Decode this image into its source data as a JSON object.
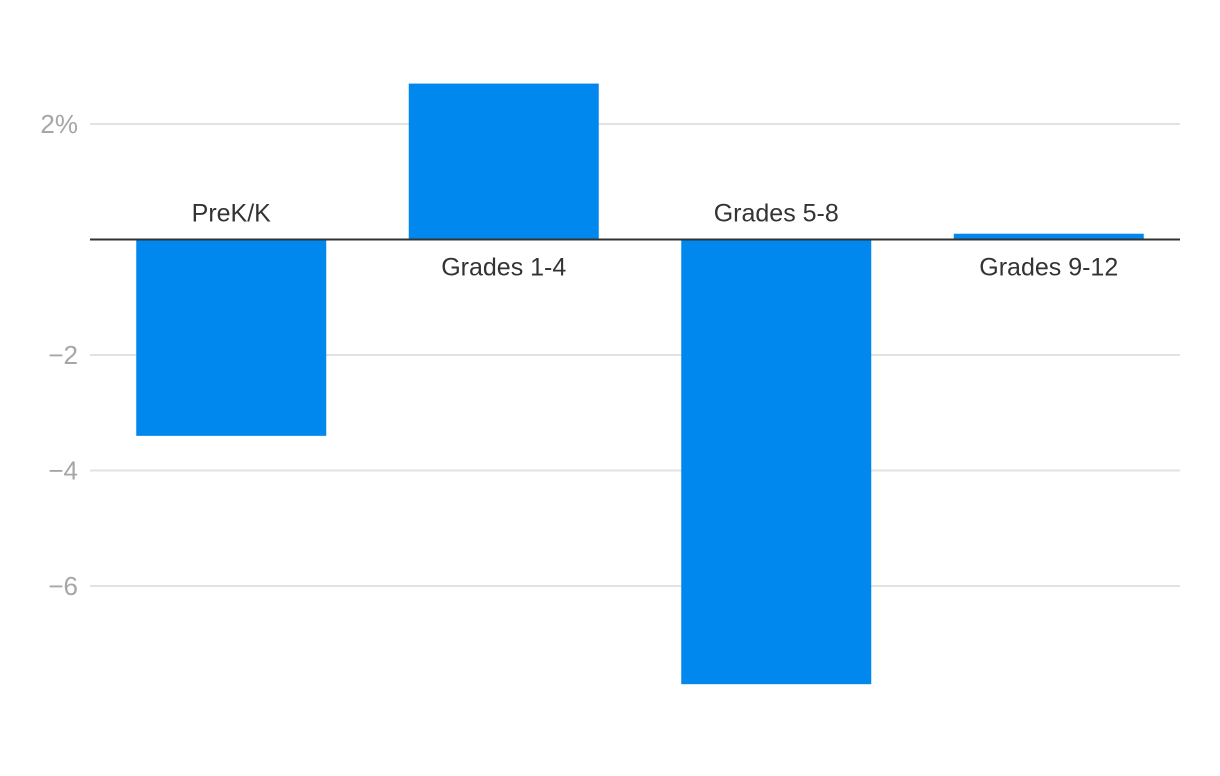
{
  "chart_data": {
    "type": "bar",
    "categories": [
      "PreK/K",
      "Grades 1-4",
      "Grades 5-8",
      "Grades 9-12"
    ],
    "values": [
      -3.4,
      2.7,
      -7.7,
      0.1
    ],
    "title": "",
    "xlabel": "",
    "ylabel": "",
    "ylim": [
      -8.2,
      3.5
    ],
    "yticks": [
      2,
      -2,
      -4,
      -6
    ],
    "ytick_labels": [
      "2%",
      "−2",
      "−4",
      "−6"
    ],
    "grid": true,
    "legend": "none",
    "bar_color": "#0088ee"
  }
}
